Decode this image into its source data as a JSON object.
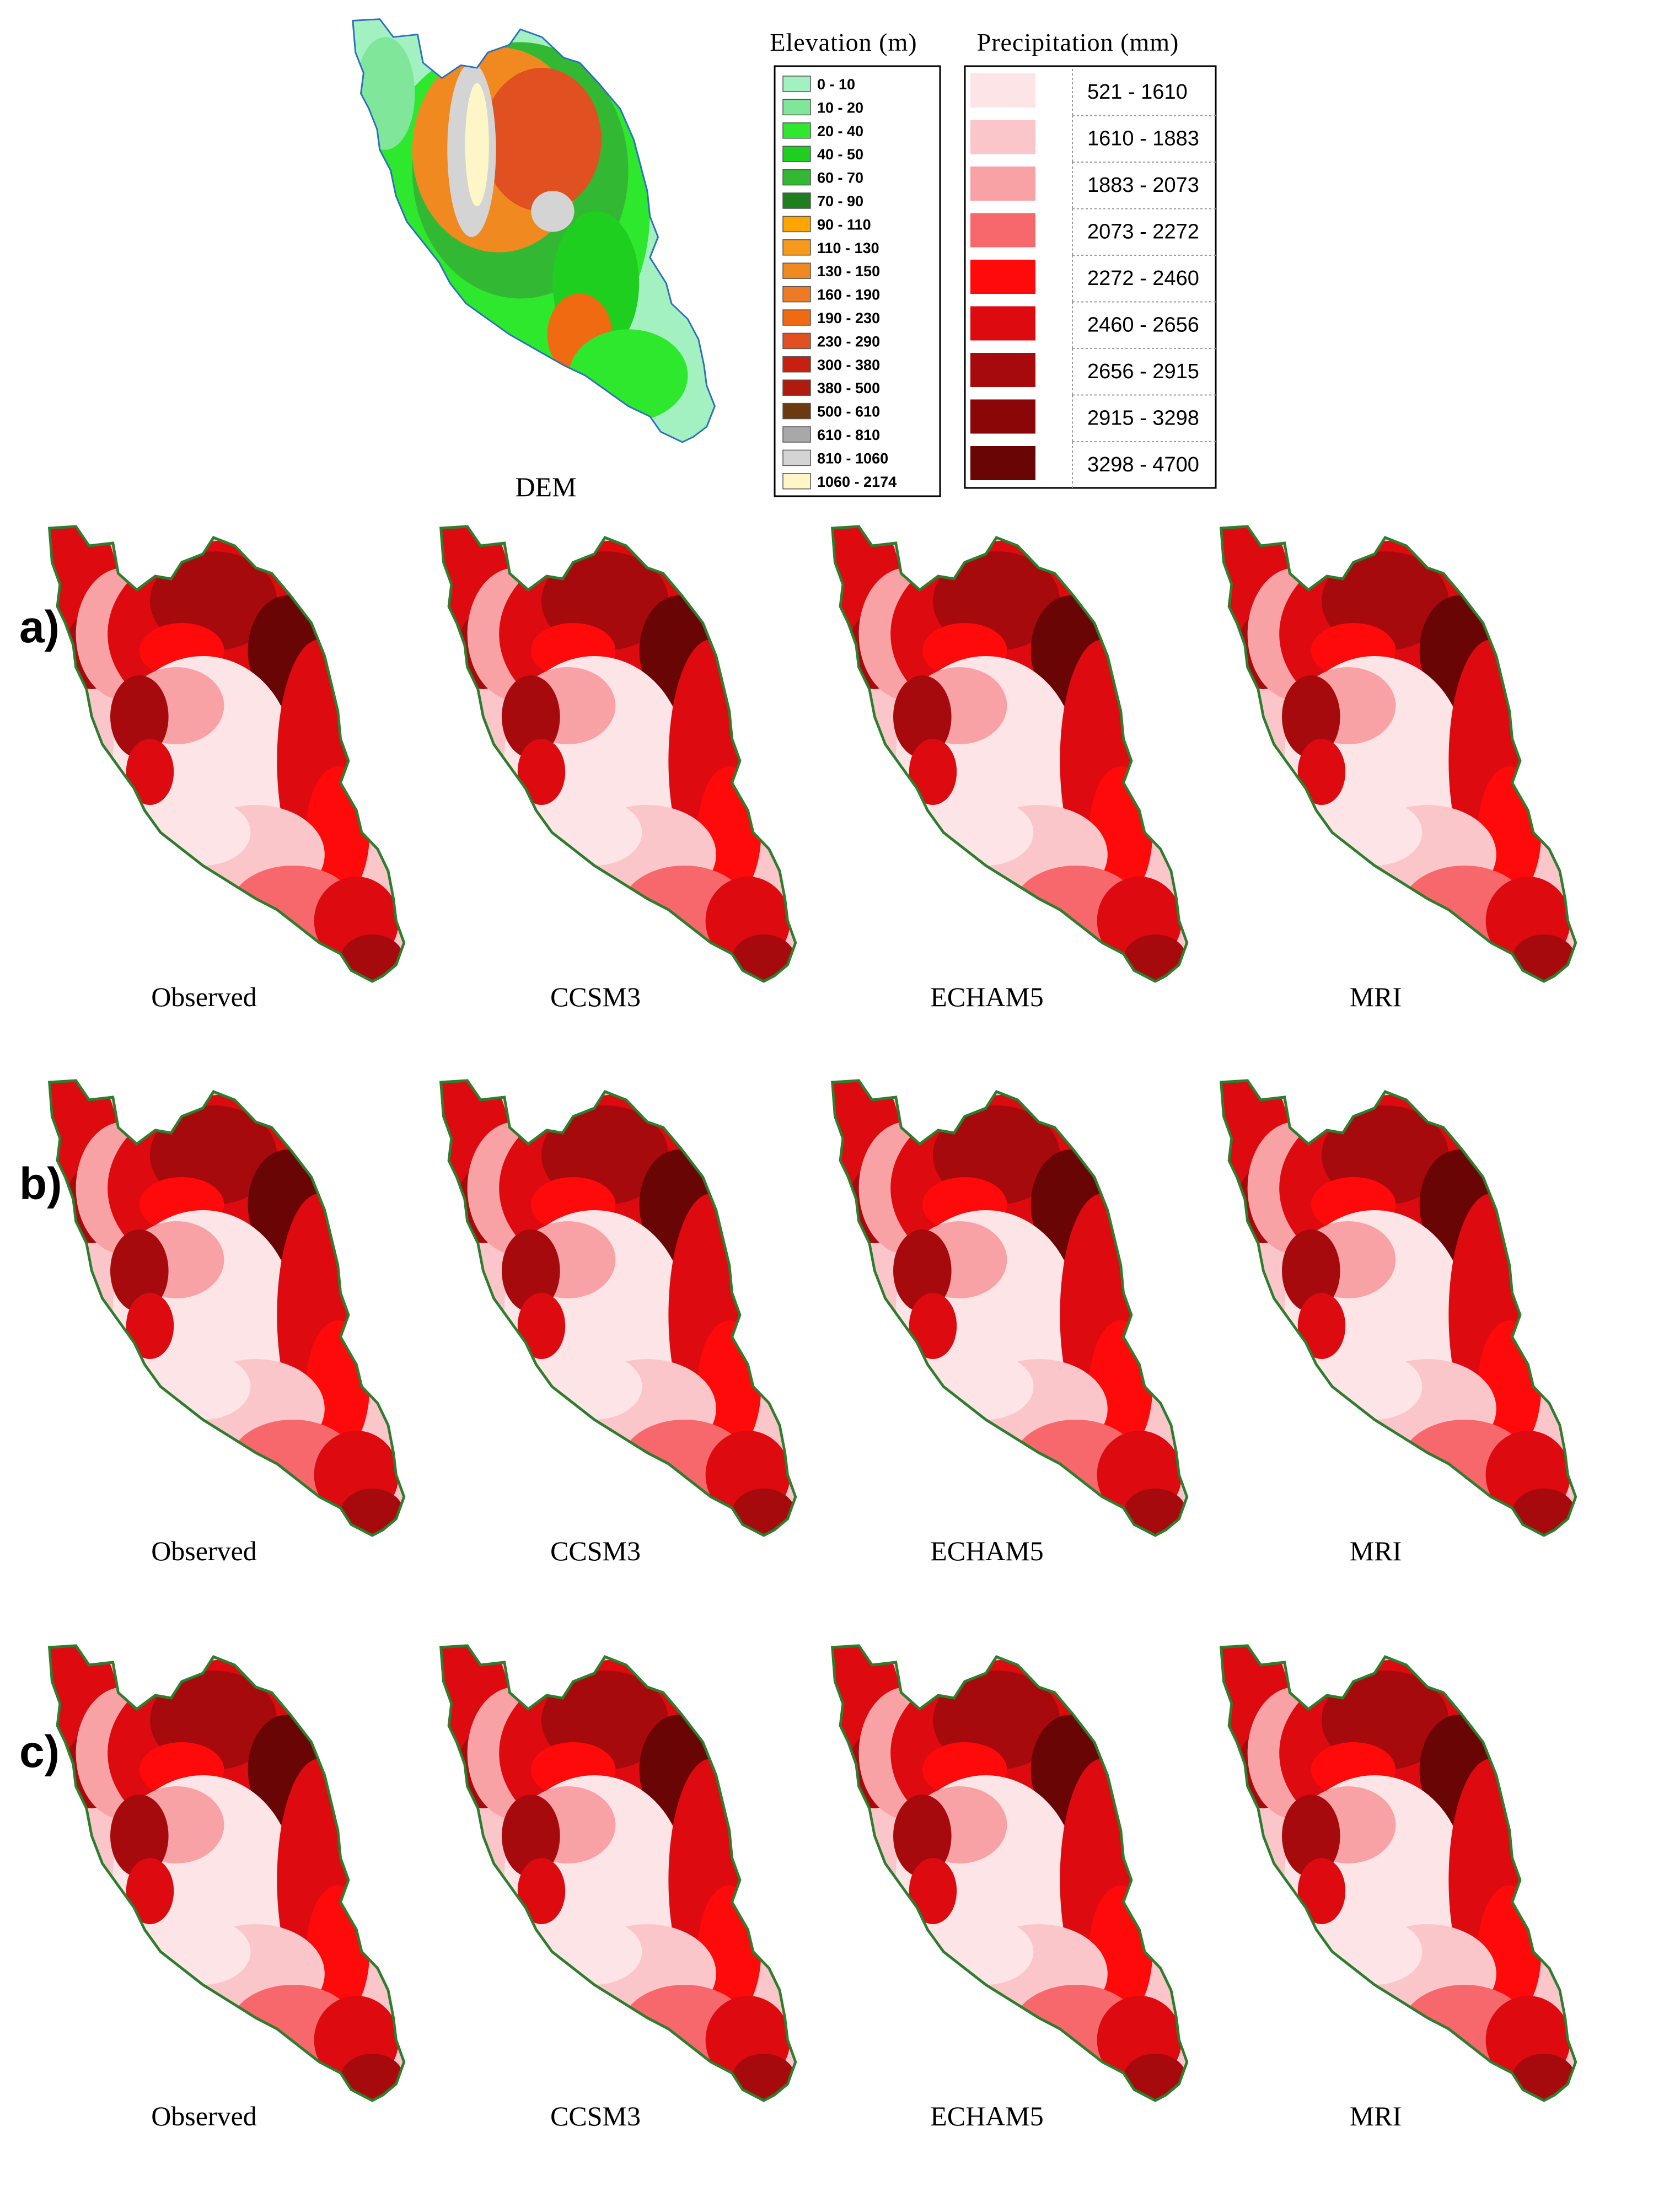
{
  "colors": {
    "coast_outline": "#2e7d2e",
    "water": "#ffffff"
  },
  "dem_label": "DEM",
  "legend": {
    "elevation": {
      "title": "Elevation (m)",
      "classes": [
        {
          "label": "0 - 10",
          "color": "#a3f0c0"
        },
        {
          "label": "10 - 20",
          "color": "#7fe69a"
        },
        {
          "label": "20 - 40",
          "color": "#2ee82e"
        },
        {
          "label": "40 - 50",
          "color": "#1fcf1f"
        },
        {
          "label": "60 - 70",
          "color": "#33b833"
        },
        {
          "label": "70 - 90",
          "color": "#1f7f1f"
        },
        {
          "label": "90 - 110",
          "color": "#ffa500"
        },
        {
          "label": "110 - 130",
          "color": "#f59a1a"
        },
        {
          "label": "130 - 150",
          "color": "#f08a20"
        },
        {
          "label": "160 - 190",
          "color": "#ee7a26"
        },
        {
          "label": "190 - 230",
          "color": "#ef6a10"
        },
        {
          "label": "230 - 290",
          "color": "#e05020"
        },
        {
          "label": "300 - 380",
          "color": "#c82010"
        },
        {
          "label": "380 - 500",
          "color": "#b01a0f"
        },
        {
          "label": "500 - 610",
          "color": "#6b3a10"
        },
        {
          "label": "610 - 810",
          "color": "#a8a8a8"
        },
        {
          "label": "810 - 1060",
          "color": "#d4d4d4"
        },
        {
          "label": "1060 - 2174",
          "color": "#fff6c8"
        }
      ]
    },
    "precipitation": {
      "title": "Precipitation (mm)",
      "classes": [
        {
          "label": "521 - 1610",
          "color": "#fde4e6"
        },
        {
          "label": "1610 - 1883",
          "color": "#fbc6ca"
        },
        {
          "label": "1883 - 2073",
          "color": "#f9a2a6"
        },
        {
          "label": "2073 - 2272",
          "color": "#f6686c"
        },
        {
          "label": "2272 - 2460",
          "color": "#ff0a0a"
        },
        {
          "label": "2460 - 2656",
          "color": "#dd0a10"
        },
        {
          "label": "2656 - 2915",
          "color": "#a70a0c"
        },
        {
          "label": "2915 - 3298",
          "color": "#8b0607"
        },
        {
          "label": "3298 - 4700",
          "color": "#6a0505"
        }
      ]
    }
  },
  "rows": [
    {
      "label": "a)",
      "panels": [
        "Observed",
        "CCSM3",
        "ECHAM5",
        "MRI"
      ]
    },
    {
      "label": "b)",
      "panels": [
        "Observed",
        "CCSM3",
        "ECHAM5",
        "MRI"
      ]
    },
    {
      "label": "c)",
      "panels": [
        "Observed",
        "CCSM3",
        "ECHAM5",
        "MRI"
      ]
    }
  ]
}
